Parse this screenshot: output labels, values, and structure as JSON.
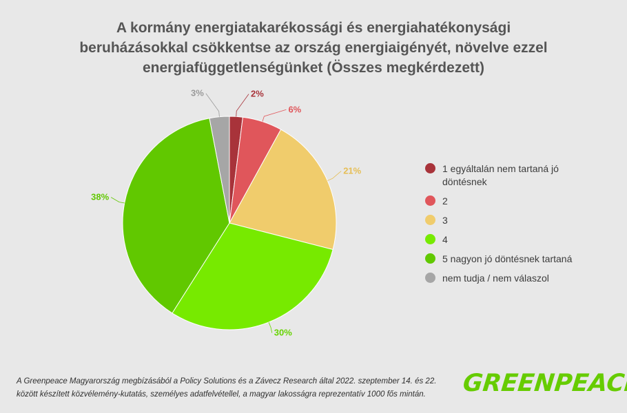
{
  "title_lines": [
    "A kormány energiatakarékossági és energiahatékonysági",
    "beruházásokkal csökkentse az ország energiaigényét, növelve ezzel",
    "energiafüggetlenségünket (Összes megkérdezett)"
  ],
  "chart_data": {
    "type": "pie",
    "title": "A kormány energiatakarékossági és energiahatékonysági beruházásokkal csökkentse az ország energiaigényét, növelve ezzel energiafüggetlenségünket (Összes megkérdezett)",
    "unit": "%",
    "legend_position": "right",
    "slices": [
      {
        "label": "1 egyáltalán nem tartaná jó döntésnek",
        "value": 2,
        "display": "2%",
        "color": "#a8333a",
        "label_color": "#a8333a"
      },
      {
        "label": "2",
        "value": 6,
        "display": "6%",
        "color": "#e0565b",
        "label_color": "#e0565b"
      },
      {
        "label": "3",
        "value": 21,
        "display": "21%",
        "color": "#f0cc6c",
        "label_color": "#e6be55"
      },
      {
        "label": "4",
        "value": 30,
        "display": "30%",
        "color": "#77ea00",
        "label_color": "#66d400"
      },
      {
        "label": "5 nagyon jó döntésnek tartaná",
        "value": 38,
        "display": "38%",
        "color": "#61c800",
        "label_color": "#61c800"
      },
      {
        "label": "nem tudja / nem válaszol",
        "value": 3,
        "display": "3%",
        "color": "#a6a6a6",
        "label_color": "#9a9a9a"
      }
    ]
  },
  "legend": [
    {
      "label_lines": [
        "1 egyáltalán nem tartaná jó",
        "döntésnek"
      ],
      "color": "#a8333a"
    },
    {
      "label_lines": [
        "2"
      ],
      "color": "#e0565b"
    },
    {
      "label_lines": [
        "3"
      ],
      "color": "#f0cc6c"
    },
    {
      "label_lines": [
        "4"
      ],
      "color": "#77ea00"
    },
    {
      "label_lines": [
        "5 nagyon jó döntésnek tartaná"
      ],
      "color": "#61c800"
    },
    {
      "label_lines": [
        "nem tudja / nem válaszol"
      ],
      "color": "#a6a6a6"
    }
  ],
  "footnote_lines": [
    "A Greenpeace Magyarország megbízásából a Policy Solutions és a Závecz Research által 2022. szeptember 14. és 22.",
    "között készített közvélemény-kutatás, személyes adatfelvétellel, a magyar lakosságra reprezentatív 1000 fős mintán."
  ],
  "logo_text": "GREENPEACE"
}
